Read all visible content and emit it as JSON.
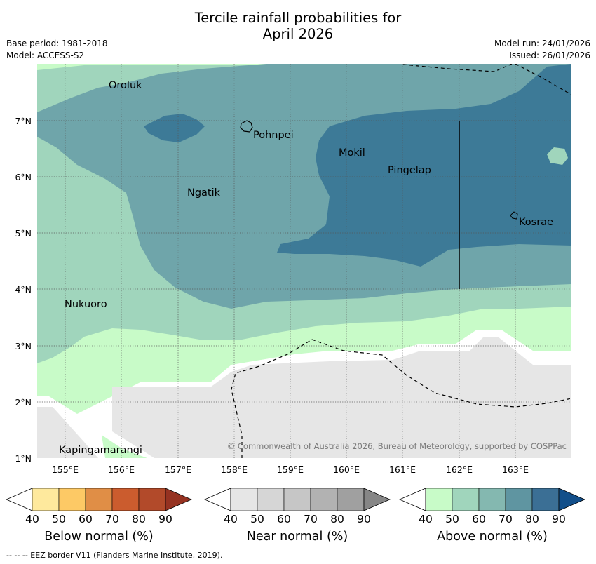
{
  "title": {
    "line1": "Tercile rainfall probabilities for",
    "line2": "April 2026"
  },
  "meta": {
    "base_period": "Base period: 1981-2018",
    "model": "Model: ACCESS-S2",
    "model_run": "Model run: 24/01/2026",
    "issued": "Issued: 26/01/2026"
  },
  "map": {
    "lat_ticks": [
      "7°N",
      "6°N",
      "5°N",
      "4°N",
      "3°N",
      "2°N",
      "1°N"
    ],
    "lon_ticks": [
      "155°E",
      "156°E",
      "157°E",
      "158°E",
      "159°E",
      "160°E",
      "161°E",
      "162°E",
      "163°E"
    ],
    "places": [
      "Oroluk",
      "Pohnpei",
      "Mokil",
      "Pingelap",
      "Ngatik",
      "Kosrae",
      "Nukuoro",
      "Kapingamarangi"
    ],
    "copyright": "© Commonwealth of Australia 2026, Bureau of Meteorology, supported by COSPPac"
  },
  "legends": [
    {
      "label": "Below normal (%)",
      "ticks": [
        "40",
        "50",
        "60",
        "70",
        "80",
        "90"
      ],
      "colors": [
        "#ffffff",
        "#fee99d",
        "#fdc965",
        "#e08e46",
        "#cb5c2e",
        "#b24a2a",
        "#953221"
      ]
    },
    {
      "label": "Near normal (%)",
      "ticks": [
        "40",
        "50",
        "60",
        "70",
        "80",
        "90"
      ],
      "colors": [
        "#ffffff",
        "#e6e6e6",
        "#d6d6d6",
        "#c6c6c6",
        "#b2b2b2",
        "#a0a0a0",
        "#868686"
      ]
    },
    {
      "label": "Above normal (%)",
      "ticks": [
        "40",
        "50",
        "60",
        "70",
        "80",
        "90"
      ],
      "colors": [
        "#ffffff",
        "#c8fbc8",
        "#a0d5bc",
        "#84b8b0",
        "#5f95a1",
        "#3b6f95",
        "#124f8a"
      ]
    }
  ],
  "footnote": "--  --  -- EEZ border V11 (Flanders Marine Institute, 2019)."
}
